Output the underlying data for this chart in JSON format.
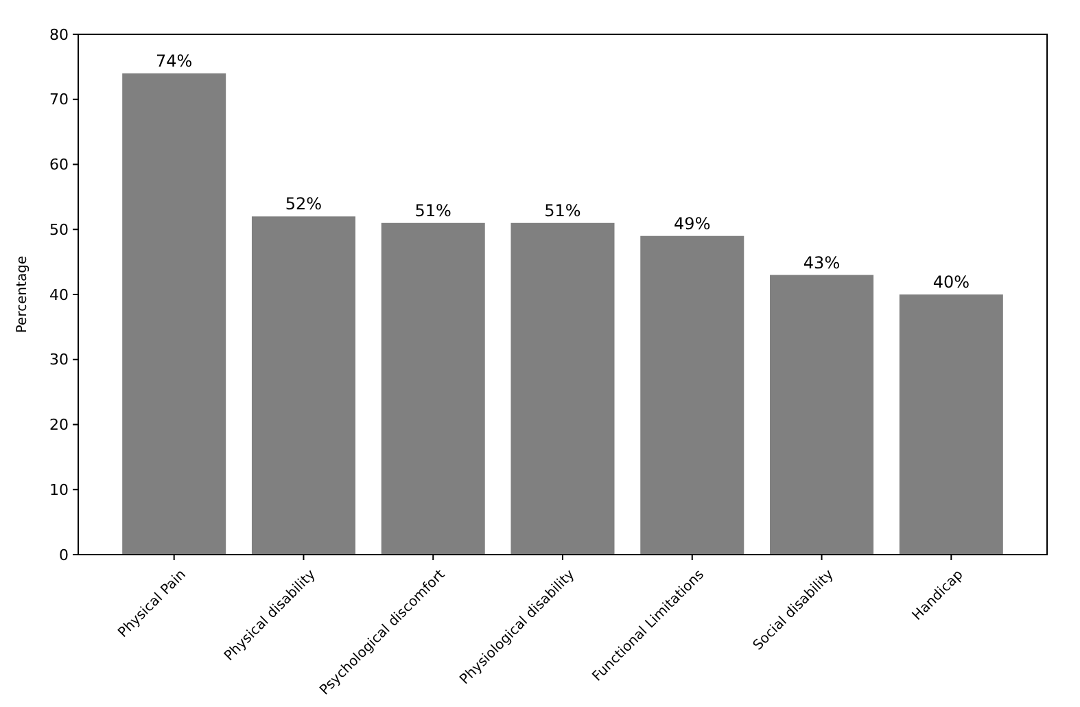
{
  "chart_data": {
    "type": "bar",
    "ylabel": "Percentage",
    "categories": [
      "Physical Pain",
      "Physical disability",
      "Psychological discomfort",
      "Physiological disability",
      "Functional Limitations",
      "Social disability",
      "Handicap"
    ],
    "values": [
      74,
      52,
      51,
      51,
      49,
      43,
      40
    ],
    "value_labels": [
      "74%",
      "52%",
      "51%",
      "51%",
      "49%",
      "43%",
      "40%"
    ],
    "color": "#808080",
    "ylim": [
      0,
      80
    ],
    "yticks": [
      0,
      10,
      20,
      30,
      40,
      50,
      60,
      70,
      80
    ],
    "grid": false
  }
}
